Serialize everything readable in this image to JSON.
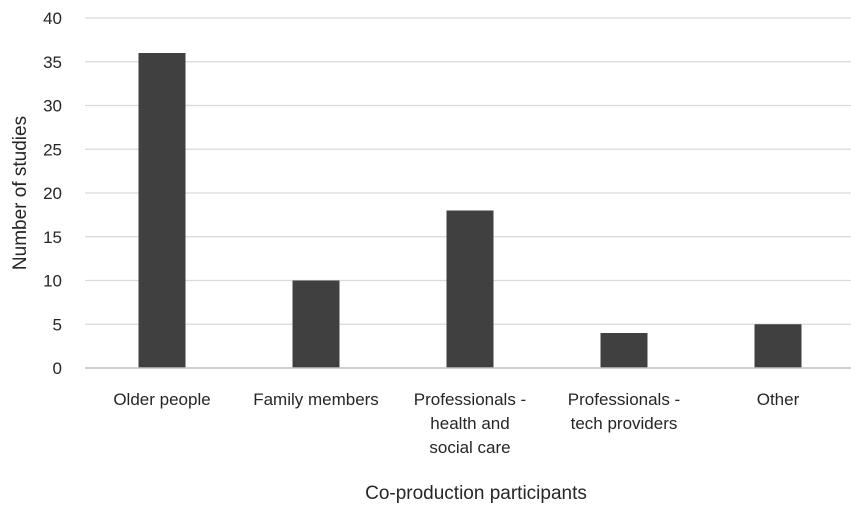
{
  "chart_data": {
    "type": "bar",
    "categories": [
      "Older people",
      "Family members",
      "Professionals - health and social care",
      "Professionals - tech providers",
      "Other"
    ],
    "category_label_lines": [
      [
        "Older people"
      ],
      [
        "Family members"
      ],
      [
        "Professionals -",
        "health and",
        "social care"
      ],
      [
        "Professionals -",
        "tech providers"
      ],
      [
        "Other"
      ]
    ],
    "values": [
      36,
      10,
      18,
      4,
      5
    ],
    "xlabel": "Co-production participants",
    "ylabel": "Number of studies",
    "ylim": [
      0,
      40
    ],
    "yticks": [
      0,
      5,
      10,
      15,
      20,
      25,
      30,
      35,
      40
    ],
    "grid": true,
    "legend": "none",
    "colors": {
      "bar": "#404040",
      "grid": "#d9d9d9",
      "axis": "#bfbfbf",
      "text": "#262626"
    }
  }
}
